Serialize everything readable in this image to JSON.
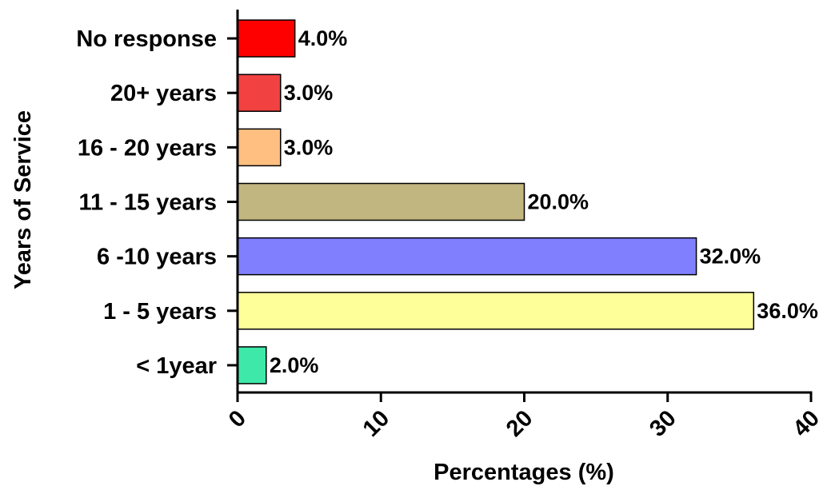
{
  "chart_data": {
    "type": "bar",
    "orientation": "horizontal",
    "title": "",
    "xlabel": "Percentages (%)",
    "ylabel": "Years of Service",
    "xlim": [
      0,
      40
    ],
    "x_ticks": [
      0,
      10,
      20,
      30,
      40
    ],
    "grid": false,
    "legend": "none",
    "categories": [
      "No response",
      "20+ years",
      "16 - 20 years",
      "11 - 15 years",
      "6 -10 years",
      "1 - 5 years",
      "< 1year"
    ],
    "values": [
      4.0,
      3.0,
      3.0,
      20.0,
      32.0,
      36.0,
      2.0
    ],
    "value_labels": [
      "4.0%",
      "3.0%",
      "3.0%",
      "20.0%",
      "32.0%",
      "36.0%",
      "2.0%"
    ],
    "colors": [
      "#ff0000",
      "#f24141",
      "#ffbf80",
      "#c2b680",
      "#8080ff",
      "#ffff99",
      "#3ee8a8"
    ]
  }
}
